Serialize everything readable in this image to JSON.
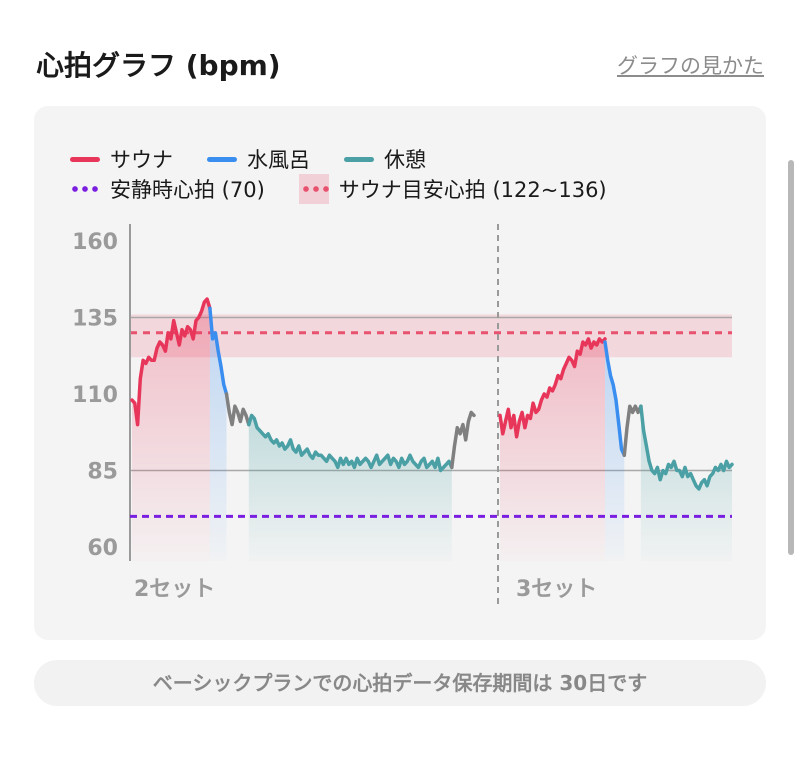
{
  "header": {
    "title": "心拍グラフ (bpm)",
    "help_link": "グラフの見かた"
  },
  "legend": {
    "sauna": "サウナ",
    "cold_bath": "水風呂",
    "rest": "休憩",
    "resting_hr": "安静時心拍 (70)",
    "sauna_target": "サウナ目安心拍 (122~136)"
  },
  "notice": "ベーシックプランでの心拍データ保存期間は 30日です",
  "colors": {
    "sauna": "#e8365a",
    "cold_bath": "#3a8ef0",
    "rest": "#4aa0a4",
    "transition": "#808080",
    "resting": "#7a1fe0",
    "target_band": "#e8526e"
  },
  "chart_data": {
    "type": "line",
    "ylim": [
      60,
      160
    ],
    "yticks": [
      60,
      85,
      110,
      135,
      160
    ],
    "reference_lines": {
      "resting_hr": 70,
      "target_low": 122,
      "target_high": 136,
      "target_mid": 130
    },
    "set_labels": [
      "2セット",
      "3セット"
    ],
    "series": [
      {
        "name": "サウナ",
        "segment": "set2",
        "color_key": "sauna",
        "values": [
          108,
          107,
          100,
          115,
          121,
          120,
          122,
          121,
          121,
          125,
          127,
          126,
          124,
          130,
          128,
          134,
          130,
          126,
          131,
          129,
          132,
          131,
          128,
          134,
          135,
          137,
          140,
          141,
          138
        ]
      },
      {
        "name": "水風呂",
        "segment": "set2",
        "color_key": "cold_bath",
        "values": [
          138,
          128,
          130,
          124,
          119,
          113,
          110
        ]
      },
      {
        "name": "",
        "segment": "set2",
        "color_key": "transition",
        "values": [
          110,
          104,
          100,
          106,
          104,
          101,
          105,
          103,
          100
        ]
      },
      {
        "name": "休憩",
        "segment": "set2",
        "color_key": "rest",
        "values": [
          100,
          103,
          102,
          99,
          98,
          97,
          96,
          97,
          95,
          94,
          95,
          93,
          94,
          92,
          93,
          95,
          92,
          91,
          93,
          90,
          91,
          92,
          90,
          89,
          91,
          90,
          90,
          89,
          88,
          90,
          89,
          88,
          86,
          89,
          87,
          89,
          87,
          88,
          86,
          89,
          87,
          88,
          89,
          88,
          86,
          88,
          90,
          87,
          88,
          89,
          90,
          87,
          89,
          88,
          86,
          89,
          87,
          88,
          90,
          88,
          87,
          86,
          88,
          89,
          86,
          87,
          88,
          86,
          89,
          85,
          86,
          87,
          88,
          86
        ]
      },
      {
        "name": "",
        "segment": "set2",
        "color_key": "transition",
        "values": [
          86,
          93,
          99,
          97,
          100,
          95,
          101,
          104,
          103
        ]
      },
      {
        "name": "サウナ",
        "segment": "set3",
        "color_key": "sauna",
        "values": [
          103,
          97,
          101,
          105,
          99,
          103,
          96,
          101,
          104,
          99,
          103,
          102,
          107,
          104,
          105,
          108,
          110,
          109,
          112,
          111,
          113,
          116,
          115,
          118,
          120,
          122,
          121,
          119,
          124,
          123,
          127,
          126,
          128,
          125,
          127,
          126,
          128,
          127,
          128
        ]
      },
      {
        "name": "水風呂",
        "segment": "set3",
        "color_key": "cold_bath",
        "values": [
          127,
          121,
          116,
          113,
          108,
          100,
          92,
          90
        ]
      },
      {
        "name": "",
        "segment": "set3",
        "color_key": "transition",
        "values": [
          90,
          99,
          106,
          104,
          106,
          104,
          106
        ]
      },
      {
        "name": "休憩",
        "segment": "set3",
        "color_key": "rest",
        "values": [
          106,
          98,
          93,
          88,
          85,
          84,
          86,
          82,
          85,
          84,
          87,
          86,
          88,
          85,
          85,
          83,
          86,
          83,
          84,
          82,
          80,
          79,
          81,
          82,
          80,
          83,
          84,
          86,
          85,
          87,
          85,
          88,
          86,
          87
        ]
      }
    ]
  }
}
